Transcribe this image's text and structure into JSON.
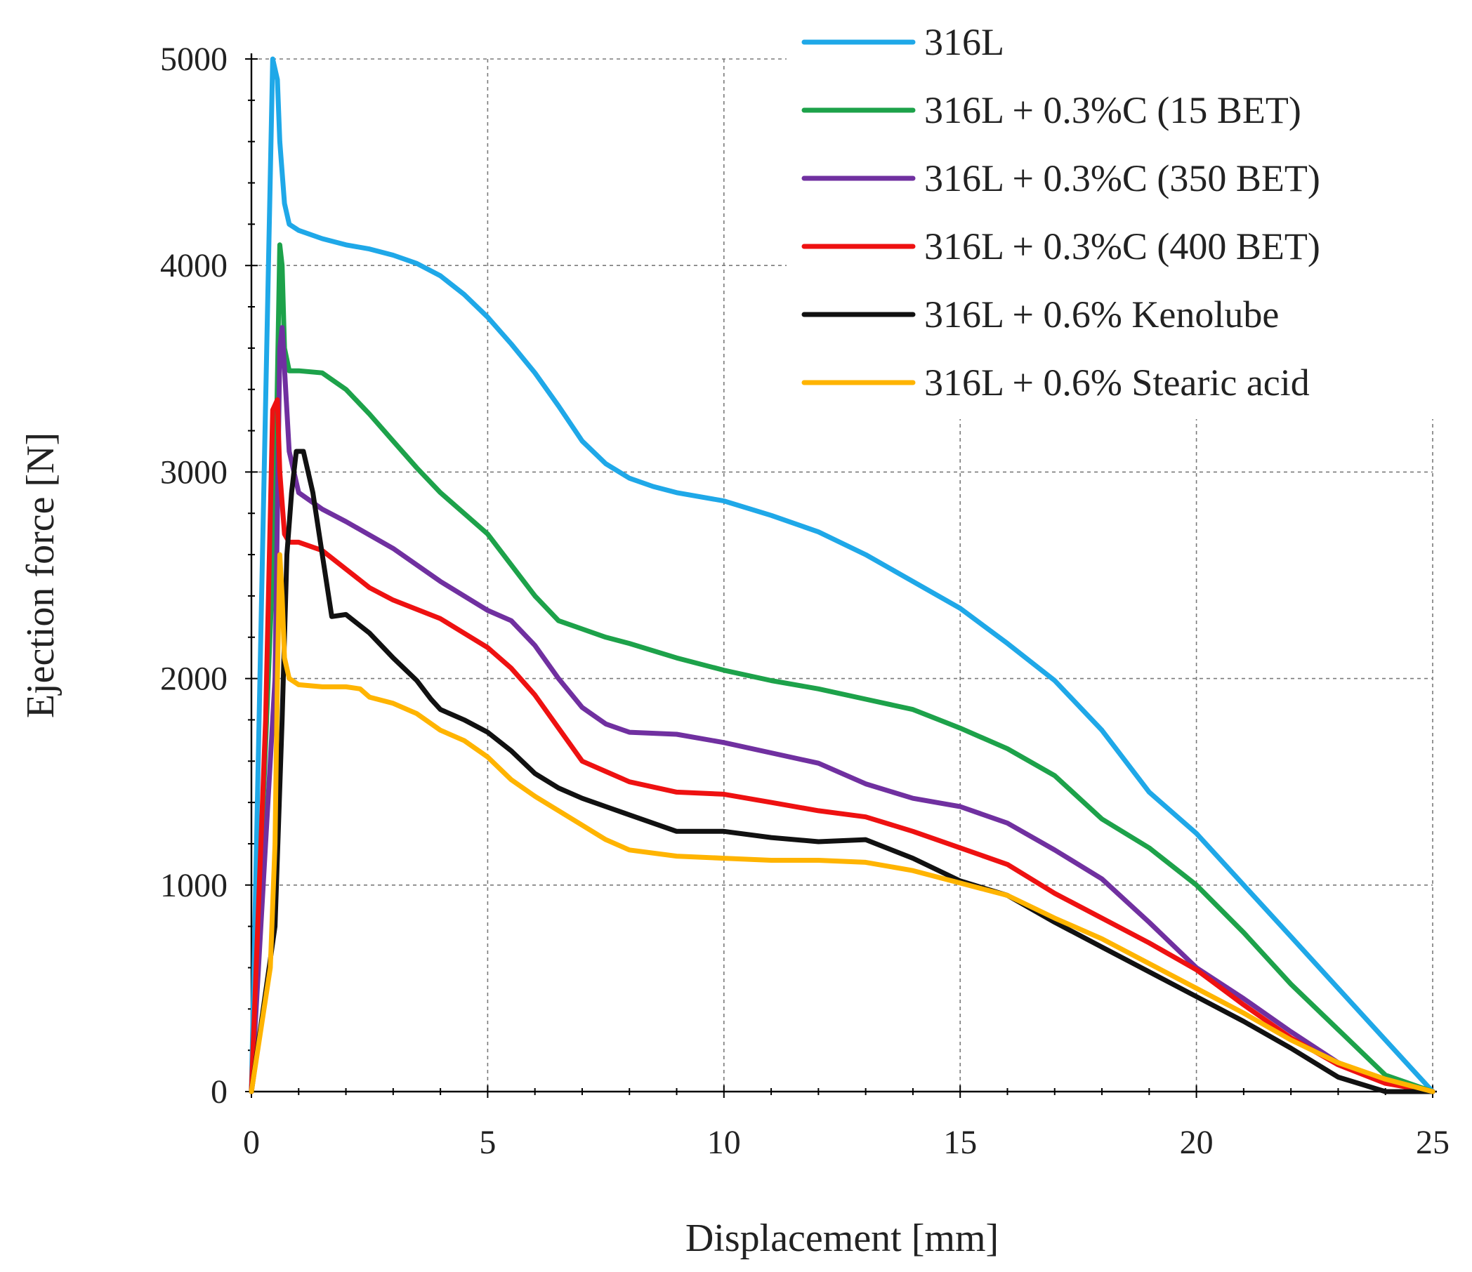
{
  "chart_data": {
    "type": "line",
    "xlabel": "Displacement [mm]",
    "ylabel": "Ejection force [N]",
    "xlim": [
      0,
      25
    ],
    "ylim": [
      0,
      5000
    ],
    "xticks": [
      0,
      5,
      10,
      15,
      20,
      25
    ],
    "yticks": [
      0,
      1000,
      2000,
      3000,
      4000,
      5000
    ],
    "grid": true,
    "legend_position": "top-right",
    "series": [
      {
        "name": "316L",
        "color": "#1fa8e8",
        "x": [
          0,
          0.45,
          0.55,
          0.6,
          0.7,
          0.8,
          1.0,
          1.5,
          2.0,
          2.5,
          3.0,
          3.5,
          4.0,
          4.5,
          5.0,
          5.5,
          6.0,
          6.5,
          7.0,
          7.5,
          8.0,
          8.5,
          9.0,
          10.0,
          11.0,
          12.0,
          13.0,
          14.0,
          15.0,
          16.0,
          17.0,
          18.0,
          19.0,
          20.0,
          21.0,
          22.0,
          23.0,
          24.0,
          25.0
        ],
        "y": [
          0,
          5000,
          4900,
          4600,
          4300,
          4200,
          4170,
          4130,
          4100,
          4080,
          4050,
          4010,
          3950,
          3860,
          3750,
          3620,
          3480,
          3320,
          3150,
          3040,
          2970,
          2930,
          2900,
          2860,
          2790,
          2710,
          2600,
          2470,
          2340,
          2170,
          1990,
          1750,
          1450,
          1250,
          1000,
          750,
          500,
          250,
          0
        ]
      },
      {
        "name": "316L + 0.3%C (15 BET)",
        "color": "#1da24a",
        "x": [
          0,
          0.5,
          0.6,
          0.65,
          0.7,
          0.8,
          1.0,
          1.5,
          2.0,
          2.5,
          3.0,
          3.5,
          4.0,
          4.5,
          5.0,
          5.5,
          6.0,
          6.5,
          7.0,
          7.5,
          8.0,
          9.0,
          10.0,
          11.0,
          12.0,
          13.0,
          14.0,
          15.0,
          16.0,
          17.0,
          18.0,
          19.0,
          20.0,
          21.0,
          22.0,
          23.0,
          24.0,
          25.0
        ],
        "y": [
          0,
          2800,
          4100,
          4000,
          3600,
          3490,
          3490,
          3480,
          3400,
          3280,
          3150,
          3020,
          2900,
          2800,
          2700,
          2550,
          2400,
          2280,
          2240,
          2200,
          2170,
          2100,
          2040,
          1990,
          1950,
          1900,
          1850,
          1760,
          1660,
          1530,
          1320,
          1180,
          1000,
          770,
          520,
          300,
          80,
          0
        ]
      },
      {
        "name": "316L + 0.3%C (350 BET)",
        "color": "#7030a0",
        "x": [
          0,
          0.5,
          0.6,
          0.65,
          0.7,
          0.8,
          1.0,
          1.5,
          2.0,
          3.0,
          4.0,
          5.0,
          5.5,
          6.0,
          6.5,
          7.0,
          7.5,
          8.0,
          9.0,
          10.0,
          11.0,
          12.0,
          13.0,
          14.0,
          15.0,
          16.0,
          17.0,
          18.0,
          19.0,
          20.0,
          21.0,
          22.0,
          23.0,
          24.0,
          25.0
        ],
        "y": [
          0,
          2000,
          3600,
          3700,
          3500,
          3100,
          2900,
          2820,
          2760,
          2630,
          2470,
          2330,
          2280,
          2160,
          2000,
          1860,
          1780,
          1740,
          1730,
          1690,
          1640,
          1590,
          1490,
          1420,
          1380,
          1300,
          1170,
          1030,
          820,
          600,
          450,
          290,
          140,
          50,
          0
        ]
      },
      {
        "name": "316L + 0.3%C (400 BET)",
        "color": "#ee1111",
        "x": [
          0,
          0.3,
          0.45,
          0.55,
          0.6,
          0.7,
          0.8,
          1.0,
          1.5,
          2.0,
          2.5,
          3.0,
          4.0,
          5.0,
          5.5,
          6.0,
          6.5,
          7.0,
          7.5,
          8.0,
          9.0,
          10.0,
          11.0,
          12.0,
          13.0,
          14.0,
          15.0,
          16.0,
          17.0,
          18.0,
          19.0,
          20.0,
          21.0,
          22.0,
          23.0,
          24.0,
          25.0
        ],
        "y": [
          0,
          1800,
          3300,
          3350,
          3000,
          2700,
          2660,
          2660,
          2620,
          2530,
          2440,
          2380,
          2290,
          2150,
          2050,
          1920,
          1760,
          1600,
          1550,
          1500,
          1450,
          1440,
          1400,
          1360,
          1330,
          1260,
          1180,
          1100,
          960,
          840,
          720,
          590,
          420,
          260,
          130,
          40,
          0
        ]
      },
      {
        "name": "316L + 0.6% Kenolube",
        "color": "#111111",
        "x": [
          0,
          0.5,
          0.65,
          0.75,
          0.85,
          0.95,
          1.1,
          1.3,
          1.5,
          1.7,
          2.0,
          2.5,
          3.0,
          3.5,
          3.8,
          4.0,
          4.5,
          5.0,
          5.5,
          6.0,
          6.5,
          7.0,
          7.5,
          8.0,
          9.0,
          10.0,
          11.0,
          12.0,
          13.0,
          14.0,
          15.0,
          16.0,
          17.0,
          18.0,
          19.0,
          20.0,
          21.0,
          22.0,
          23.0,
          24.0,
          25.0
        ],
        "y": [
          0,
          800,
          1800,
          2600,
          2900,
          3100,
          3100,
          2900,
          2600,
          2300,
          2310,
          2220,
          2100,
          1990,
          1900,
          1850,
          1800,
          1740,
          1650,
          1540,
          1470,
          1420,
          1380,
          1340,
          1260,
          1260,
          1230,
          1210,
          1220,
          1130,
          1020,
          950,
          820,
          700,
          580,
          460,
          340,
          210,
          70,
          0,
          0
        ]
      },
      {
        "name": "316L + 0.6% Stearic acid",
        "color": "#ffb400",
        "x": [
          0,
          0.4,
          0.5,
          0.55,
          0.6,
          0.65,
          0.7,
          0.8,
          1.0,
          1.5,
          2.0,
          2.3,
          2.5,
          3.0,
          3.5,
          4.0,
          4.5,
          5.0,
          5.5,
          6.0,
          6.5,
          7.0,
          7.5,
          8.0,
          9.0,
          10.0,
          11.0,
          12.0,
          13.0,
          14.0,
          15.0,
          16.0,
          17.0,
          18.0,
          19.0,
          20.0,
          21.0,
          22.0,
          23.0,
          24.0,
          25.0
        ],
        "y": [
          0,
          600,
          1200,
          2000,
          2600,
          2400,
          2100,
          2000,
          1970,
          1960,
          1960,
          1950,
          1910,
          1880,
          1830,
          1750,
          1700,
          1620,
          1510,
          1430,
          1360,
          1290,
          1220,
          1170,
          1140,
          1130,
          1120,
          1120,
          1110,
          1070,
          1010,
          950,
          840,
          740,
          620,
          500,
          380,
          250,
          140,
          60,
          0
        ]
      }
    ]
  }
}
